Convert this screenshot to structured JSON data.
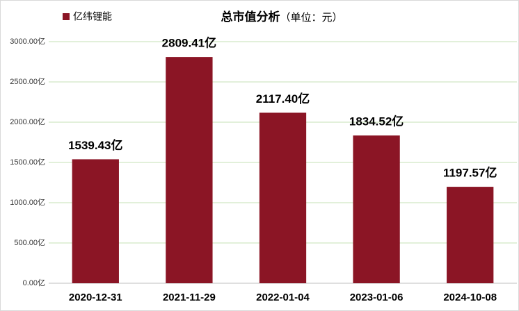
{
  "chart_data": {
    "type": "bar",
    "title": "总市值分析",
    "subtitle": "（单位：元）",
    "categories": [
      "2020-12-31",
      "2021-11-29",
      "2022-01-04",
      "2023-01-06",
      "2024-10-08"
    ],
    "series": [
      {
        "name": "亿纬锂能",
        "color": "#8b1525",
        "values": [
          1539.43,
          2809.41,
          2117.4,
          1834.52,
          1197.57
        ],
        "value_labels": [
          "1539.43亿",
          "2809.41亿",
          "2117.40亿",
          "1834.52亿",
          "1197.57亿"
        ]
      }
    ],
    "ylim": [
      0,
      3000
    ],
    "yticks": [
      {
        "value": 0,
        "label": "0.00亿"
      },
      {
        "value": 500,
        "label": "500.00亿"
      },
      {
        "value": 1000,
        "label": "1000.00亿"
      },
      {
        "value": 1500,
        "label": "1500.00亿"
      },
      {
        "value": 2000,
        "label": "2000.00亿"
      },
      {
        "value": 2500,
        "label": "2500.00亿"
      },
      {
        "value": 3000,
        "label": "3000.00亿"
      }
    ],
    "grid": true
  }
}
